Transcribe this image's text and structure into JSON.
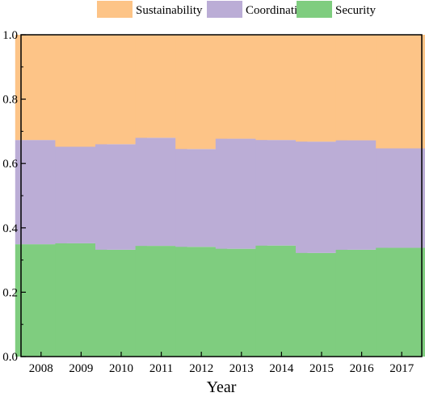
{
  "chart_data": {
    "type": "bar",
    "stacked": true,
    "normalized": true,
    "title": "",
    "xlabel": "Year",
    "ylabel": "",
    "ylim": [
      0,
      1.0
    ],
    "yticks": [
      "0.0",
      "0.2",
      "0.4",
      "0.6",
      "0.8",
      "1.0"
    ],
    "legend_position": "top",
    "grid": false,
    "categories": [
      "2008",
      "2009",
      "2010",
      "2011",
      "2012",
      "2013",
      "2014",
      "2015",
      "2016",
      "2017"
    ],
    "series": [
      {
        "name": "Security",
        "color": "#7fcd7f",
        "values": [
          0.349,
          0.352,
          0.332,
          0.344,
          0.341,
          0.335,
          0.345,
          0.322,
          0.332,
          0.338
        ]
      },
      {
        "name": "Coordination",
        "color": "#bbadd6",
        "values": [
          0.324,
          0.3,
          0.328,
          0.336,
          0.304,
          0.342,
          0.328,
          0.346,
          0.34,
          0.309
        ]
      },
      {
        "name": "Sustainability",
        "color": "#fdc487",
        "values": [
          0.327,
          0.348,
          0.34,
          0.32,
          0.355,
          0.323,
          0.327,
          0.332,
          0.328,
          0.353
        ]
      }
    ],
    "legend_order": [
      "Sustainability",
      "Coordination",
      "Security"
    ]
  }
}
